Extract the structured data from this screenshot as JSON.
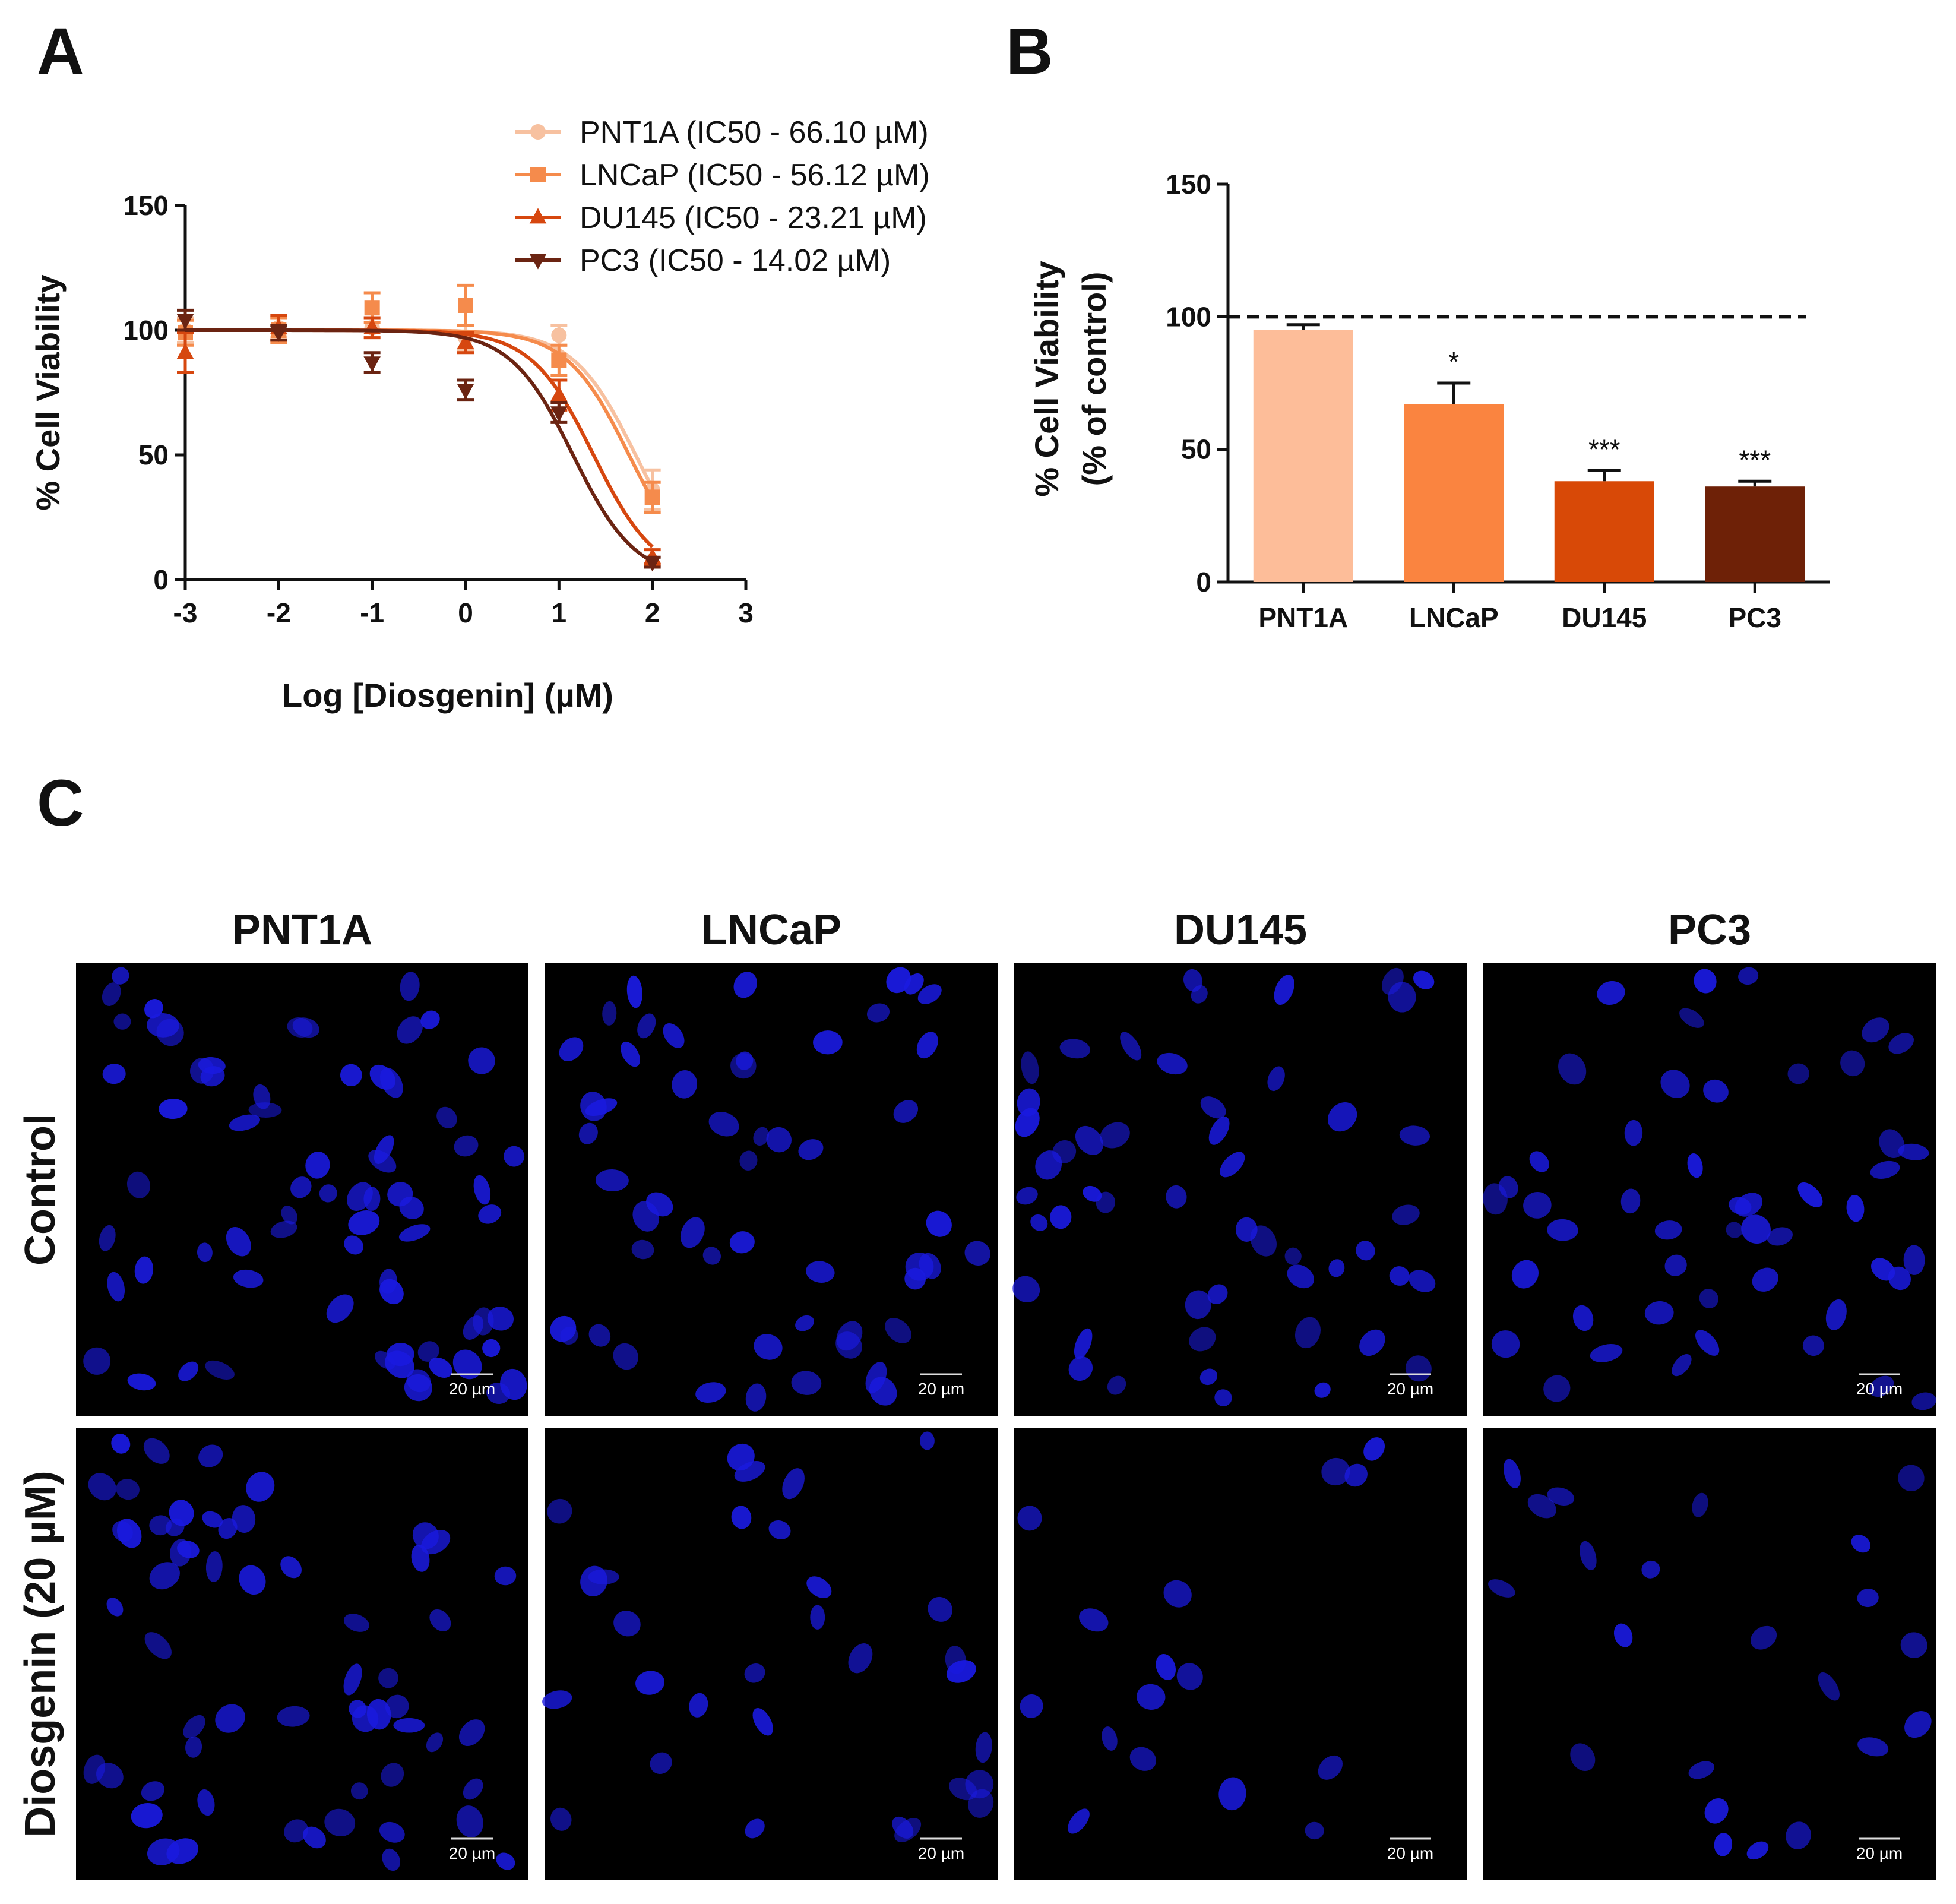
{
  "panels": {
    "a": "A",
    "b": "B",
    "c": "C"
  },
  "chart_data": [
    {
      "type": "line",
      "panel": "A",
      "xlabel": "Log [Diosgenin] (µM)",
      "ylabel": "% Cell Viability",
      "xlim": [
        -3,
        3
      ],
      "ylim": [
        0,
        150
      ],
      "xticks": [
        "-3",
        "-2",
        "-1",
        "0",
        "1",
        "2",
        "3"
      ],
      "yticks": [
        "0",
        "50",
        "100",
        "150"
      ],
      "legend_position": "top-right",
      "series": [
        {
          "name": "PNT1A (IC50 - 66.10 µM)",
          "color": "#F7C1A0",
          "marker": "circle",
          "ic50_log": 1.82,
          "x": [
            -3,
            -2,
            -1,
            0,
            1,
            2
          ],
          "y": [
            100,
            101,
            101,
            97,
            98,
            36
          ],
          "err": [
            5,
            4,
            4,
            5,
            4,
            8
          ]
        },
        {
          "name": "LNCaP (IC50 - 56.12 µM)",
          "color": "#F58B4C",
          "marker": "square",
          "ic50_log": 1.75,
          "x": [
            -3,
            -2,
            -1,
            0,
            1,
            2
          ],
          "y": [
            99,
            100,
            109,
            110,
            88,
            33
          ],
          "err": [
            5,
            5,
            6,
            8,
            6,
            6
          ]
        },
        {
          "name": "DU145 (IC50 - 23.21 µM)",
          "color": "#D6470F",
          "marker": "triangle-up",
          "ic50_log": 1.37,
          "x": [
            -3,
            -2,
            -1,
            0,
            1,
            2
          ],
          "y": [
            91,
            101,
            101,
            95,
            74,
            9
          ],
          "err": [
            8,
            5,
            4,
            4,
            6,
            3
          ]
        },
        {
          "name": "PC3 (IC50 - 14.02 µM)",
          "color": "#6B2412",
          "marker": "triangle-down",
          "ic50_log": 1.15,
          "x": [
            -3,
            -2,
            -1,
            0,
            1,
            2
          ],
          "y": [
            104,
            99,
            87,
            76,
            67,
            7
          ],
          "err": [
            4,
            3,
            4,
            4,
            4,
            2
          ]
        }
      ]
    },
    {
      "type": "bar",
      "panel": "B",
      "ylabel_line1": "% Cell Viability",
      "ylabel_line2": "(% of control)",
      "ylim": [
        0,
        150
      ],
      "yticks": [
        "0",
        "50",
        "100",
        "150"
      ],
      "reference_line": 100,
      "categories": [
        "PNT1A",
        "LNCaP",
        "DU145",
        "PC3"
      ],
      "values": [
        95,
        67,
        38,
        36
      ],
      "errors": [
        2,
        8,
        4,
        2
      ],
      "significance": [
        "",
        "*",
        "***",
        "***"
      ],
      "colors": [
        "#FDBD99",
        "#FA8440",
        "#D84907",
        "#6E2107"
      ]
    }
  ],
  "micrographs": {
    "columns": [
      "PNT1A",
      "LNCaP",
      "DU145",
      "PC3"
    ],
    "rows": [
      "Control",
      "Diosgenin  (20 µM)"
    ],
    "scale_bar": "20 µm",
    "cell_color": "#1a1ae0"
  }
}
